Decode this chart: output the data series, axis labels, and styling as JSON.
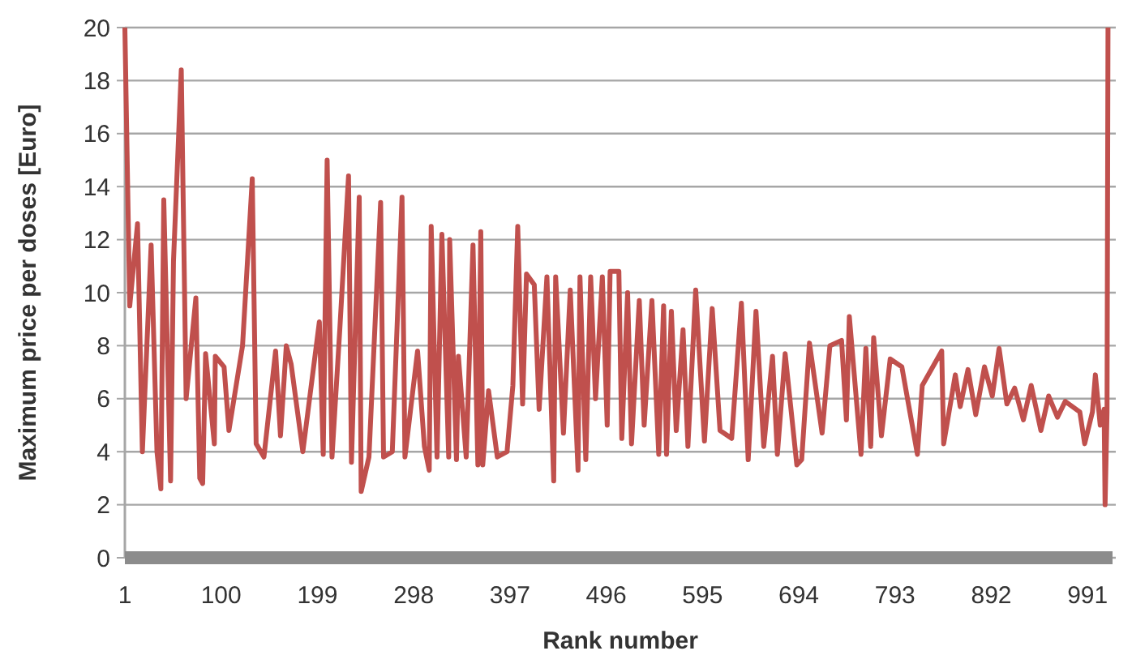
{
  "chart_data": {
    "type": "line",
    "xlabel": "Rank number",
    "ylabel": "Maximum price per doses [Euro]",
    "xlim": [
      1,
      1020
    ],
    "xticks": [
      1,
      100,
      199,
      298,
      397,
      496,
      595,
      694,
      793,
      892,
      991
    ],
    "ylim": [
      0,
      20
    ],
    "yticks": [
      0,
      2,
      4,
      6,
      8,
      10,
      12,
      14,
      16,
      18,
      20
    ],
    "grid": "y",
    "series": [
      {
        "color": "#c0504d",
        "x": [
          1,
          6,
          14,
          19,
          28,
          34,
          38,
          41,
          48,
          51,
          59,
          64,
          74,
          78,
          81,
          84,
          93,
          94,
          103,
          108,
          122,
          132,
          136,
          144,
          156,
          161,
          167,
          172,
          184,
          201,
          205,
          209,
          214,
          222,
          231,
          234,
          242,
          244,
          252,
          264,
          267,
          276,
          286,
          289,
          302,
          309,
          314,
          316,
          322,
          327,
          334,
          335,
          342,
          344,
          352,
          359,
          364,
          367,
          369,
          375,
          384,
          394,
          400,
          405,
          410,
          414,
          422,
          427,
          435,
          442,
          444,
          452,
          459,
          467,
          469,
          475,
          480,
          485,
          492,
          497,
          500,
          509,
          512,
          518,
          522,
          530,
          535,
          543,
          550,
          555,
          558,
          563,
          568,
          575,
          580,
          588,
          597,
          605,
          613,
          625,
          635,
          642,
          650,
          658,
          667,
          672,
          680,
          692,
          697,
          705,
          718,
          726,
          738,
          743,
          746,
          758,
          763,
          768,
          771,
          779,
          788,
          800,
          816,
          821,
          841,
          843,
          855,
          860,
          868,
          876,
          885,
          893,
          900,
          908,
          916,
          925,
          933,
          943,
          951,
          960,
          968,
          983,
          988,
          996,
          999,
          1004,
          1008,
          1009,
          1011,
          1012
        ],
        "values": [
          20,
          9.5,
          12.6,
          4,
          11.8,
          4,
          2.6,
          13.5,
          2.9,
          11.2,
          18.4,
          6,
          9.8,
          3,
          2.8,
          7.7,
          4.3,
          7.6,
          7.2,
          4.8,
          8,
          14.3,
          4.3,
          3.8,
          7.8,
          4.6,
          8,
          7.3,
          4,
          8.9,
          3.9,
          15,
          3.8,
          8.6,
          14.4,
          3.6,
          13.6,
          2.5,
          3.8,
          13.4,
          3.8,
          4,
          13.6,
          3.8,
          7.8,
          4.2,
          3.3,
          12.5,
          3.8,
          12.2,
          3.8,
          12,
          3.7,
          7.6,
          3.8,
          11.8,
          3.5,
          12.3,
          3.5,
          6.3,
          3.8,
          4,
          6.5,
          12.5,
          5.8,
          10.7,
          10.3,
          5.6,
          10.6,
          2.9,
          10.6,
          4.7,
          10.1,
          3.3,
          10.6,
          3.7,
          10.6,
          6,
          10.6,
          5,
          10.8,
          10.8,
          4.5,
          10,
          4.3,
          9.7,
          5,
          9.7,
          3.9,
          9.5,
          3.9,
          9.3,
          4.8,
          8.6,
          4.2,
          10.1,
          4.4,
          9.4,
          4.8,
          4.5,
          9.6,
          3.7,
          9.3,
          4.2,
          7.6,
          3.9,
          7.7,
          3.5,
          3.7,
          8.1,
          4.7,
          8,
          8.2,
          5.2,
          9.1,
          3.9,
          7.9,
          4.2,
          8.3,
          4.6,
          7.5,
          7.2,
          3.9,
          6.5,
          7.8,
          4.3,
          6.9,
          5.7,
          7.1,
          5.4,
          7.2,
          6.1,
          7.9,
          5.8,
          6.4,
          5.2,
          6.5,
          4.8,
          6.1,
          5.3,
          5.9,
          5.5,
          4.3,
          5.5,
          6.9,
          5,
          5.6,
          2,
          5.5,
          20
        ]
      }
    ]
  }
}
